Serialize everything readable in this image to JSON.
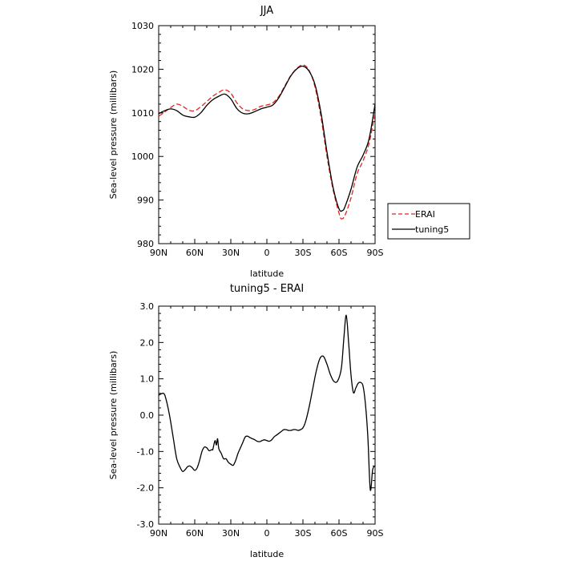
{
  "chart_data": [
    {
      "type": "line",
      "title": "JJA",
      "xlabel": "latitude",
      "ylabel": "Sea-level pressure (millibars)",
      "xlim": [
        90,
        -90
      ],
      "ylim": [
        980,
        1030
      ],
      "x_ticks": [
        90,
        60,
        30,
        0,
        -30,
        -60,
        -90
      ],
      "x_tick_labels": [
        "90N",
        "60N",
        "30N",
        "0",
        "30S",
        "60S",
        "90S"
      ],
      "y_ticks": [
        980,
        990,
        1000,
        1010,
        1020,
        1030
      ],
      "y_tick_labels": [
        "980",
        "990",
        "1000",
        "1010",
        "1020",
        "1030"
      ],
      "grid": false,
      "legend": "outside-right",
      "series": [
        {
          "name": "ERAI",
          "color": "#e8231c",
          "dash": "dashed",
          "x": [
            90,
            85,
            80,
            75,
            70,
            65,
            60,
            55,
            50,
            45,
            40,
            35,
            30,
            25,
            20,
            15,
            10,
            5,
            0,
            -5,
            -10,
            -15,
            -20,
            -25,
            -30,
            -35,
            -40,
            -45,
            -50,
            -55,
            -60,
            -62,
            -65,
            -70,
            -75,
            -80,
            -85,
            -90
          ],
          "y": [
            1009.2,
            1010.2,
            1011.2,
            1012.0,
            1011.5,
            1010.6,
            1010.5,
            1011.4,
            1012.6,
            1013.8,
            1014.7,
            1015.3,
            1014.5,
            1012.3,
            1010.9,
            1010.5,
            1010.8,
            1011.5,
            1011.8,
            1012.3,
            1013.8,
            1016.2,
            1018.6,
            1020.2,
            1021.0,
            1019.8,
            1016.0,
            1009.0,
            1000.0,
            992.5,
            987.0,
            985.7,
            986.5,
            990.5,
            996.0,
            999.0,
            1003.0,
            1010.0
          ]
        },
        {
          "name": "tuning5",
          "color": "#000000",
          "dash": "solid",
          "x": [
            90,
            85,
            80,
            75,
            70,
            65,
            60,
            55,
            50,
            45,
            40,
            35,
            30,
            25,
            20,
            15,
            10,
            5,
            0,
            -5,
            -10,
            -15,
            -20,
            -25,
            -30,
            -35,
            -40,
            -45,
            -50,
            -55,
            -60,
            -63,
            -65,
            -70,
            -75,
            -80,
            -85,
            -90
          ],
          "y": [
            1009.8,
            1010.5,
            1010.9,
            1010.5,
            1009.5,
            1009.1,
            1009.0,
            1010.0,
            1011.7,
            1013.0,
            1013.8,
            1014.3,
            1013.2,
            1011.0,
            1009.9,
            1009.8,
            1010.3,
            1010.9,
            1011.3,
            1011.8,
            1013.5,
            1016.0,
            1018.5,
            1020.1,
            1020.7,
            1019.6,
            1016.5,
            1010.0,
            1001.0,
            993.0,
            988.0,
            987.6,
            988.5,
            992.5,
            997.5,
            1000.3,
            1004.0,
            1012.0
          ]
        }
      ]
    },
    {
      "type": "line",
      "title": "tuning5 - ERAI",
      "xlabel": "latitude",
      "ylabel": "Sea-level pressure (millibars)",
      "xlim": [
        90,
        -90
      ],
      "ylim": [
        -3.0,
        3.0
      ],
      "x_ticks": [
        90,
        60,
        30,
        0,
        -30,
        -60,
        -90
      ],
      "x_tick_labels": [
        "90N",
        "60N",
        "30N",
        "0",
        "30S",
        "60S",
        "90S"
      ],
      "y_ticks": [
        -3.0,
        -2.0,
        -1.0,
        0.0,
        1.0,
        2.0,
        3.0
      ],
      "y_tick_labels": [
        "-3.0",
        "-2.0",
        "-1.0",
        "0.0",
        "1.0",
        "2.0",
        "3.0"
      ],
      "grid": false,
      "series": [
        {
          "color": "#000000",
          "x": [
            90,
            86,
            84,
            81,
            78,
            75,
            72,
            70,
            68,
            66,
            64,
            62,
            60,
            58,
            56,
            54,
            52,
            50,
            48,
            46,
            45,
            44,
            43,
            42,
            41,
            40,
            38,
            36,
            34,
            32,
            30,
            28,
            26,
            24,
            22,
            20,
            18,
            16,
            14,
            12,
            10,
            8,
            6,
            4,
            2,
            0,
            -2,
            -4,
            -6,
            -8,
            -10,
            -12,
            -14,
            -16,
            -18,
            -20,
            -22,
            -24,
            -26,
            -28,
            -30,
            -32,
            -35,
            -38,
            -41,
            -44,
            -47,
            -50,
            -53,
            -56,
            -59,
            -62,
            -64,
            -66,
            -68,
            -70,
            -72,
            -74,
            -76,
            -78,
            -80,
            -82,
            -84,
            -86,
            -88,
            -90
          ],
          "y": [
            0.55,
            0.6,
            0.45,
            0.0,
            -0.6,
            -1.2,
            -1.45,
            -1.55,
            -1.5,
            -1.42,
            -1.4,
            -1.45,
            -1.52,
            -1.45,
            -1.25,
            -1.0,
            -0.88,
            -0.9,
            -0.98,
            -0.95,
            -0.95,
            -0.8,
            -0.7,
            -0.82,
            -0.65,
            -0.92,
            -1.05,
            -1.2,
            -1.2,
            -1.3,
            -1.35,
            -1.38,
            -1.25,
            -1.05,
            -0.9,
            -0.75,
            -0.6,
            -0.58,
            -0.62,
            -0.65,
            -0.68,
            -0.72,
            -0.73,
            -0.7,
            -0.68,
            -0.7,
            -0.72,
            -0.68,
            -0.6,
            -0.55,
            -0.5,
            -0.45,
            -0.4,
            -0.4,
            -0.42,
            -0.42,
            -0.4,
            -0.4,
            -0.42,
            -0.4,
            -0.35,
            -0.2,
            0.2,
            0.7,
            1.2,
            1.55,
            1.62,
            1.4,
            1.1,
            0.92,
            0.95,
            1.3,
            2.1,
            2.75,
            2.0,
            1.1,
            0.62,
            0.75,
            0.88,
            0.9,
            0.8,
            0.3,
            -0.6,
            -2.05,
            -1.5,
            -1.4
          ]
        }
      ]
    }
  ]
}
